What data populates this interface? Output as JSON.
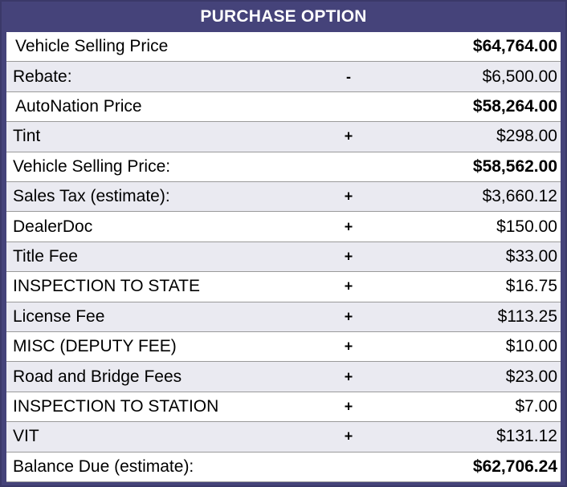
{
  "title": "PURCHASE OPTION",
  "rows": [
    {
      "label": "Vehicle Selling Price",
      "op": "",
      "amount": "$64,764.00",
      "bold": true
    },
    {
      "label": "Rebate:",
      "op": "-",
      "amount": "$6,500.00",
      "bold": false
    },
    {
      "label": "AutoNation Price",
      "op": "",
      "amount": "$58,264.00",
      "bold": true
    },
    {
      "label": "Tint",
      "op": "+",
      "amount": "$298.00",
      "bold": false
    },
    {
      "label": "Vehicle Selling Price:",
      "op": "",
      "amount": "$58,562.00",
      "bold": true
    },
    {
      "label": "Sales Tax (estimate):",
      "op": "+",
      "amount": "$3,660.12",
      "bold": false
    },
    {
      "label": "DealerDoc",
      "op": "+",
      "amount": "$150.00",
      "bold": false
    },
    {
      "label": "Title Fee",
      "op": "+",
      "amount": "$33.00",
      "bold": false
    },
    {
      "label": "INSPECTION TO STATE",
      "op": "+",
      "amount": "$16.75",
      "bold": false
    },
    {
      "label": "License Fee",
      "op": "+",
      "amount": "$113.25",
      "bold": false
    },
    {
      "label": "MISC (DEPUTY FEE)",
      "op": "+",
      "amount": "$10.00",
      "bold": false
    },
    {
      "label": "Road and Bridge Fees",
      "op": "+",
      "amount": "$23.00",
      "bold": false
    },
    {
      "label": "INSPECTION TO STATION",
      "op": "+",
      "amount": "$7.00",
      "bold": false
    },
    {
      "label": "VIT",
      "op": "+",
      "amount": "$131.12",
      "bold": false
    },
    {
      "label": "Balance Due (estimate):",
      "op": "",
      "amount": "$62,706.24",
      "bold": true
    }
  ]
}
